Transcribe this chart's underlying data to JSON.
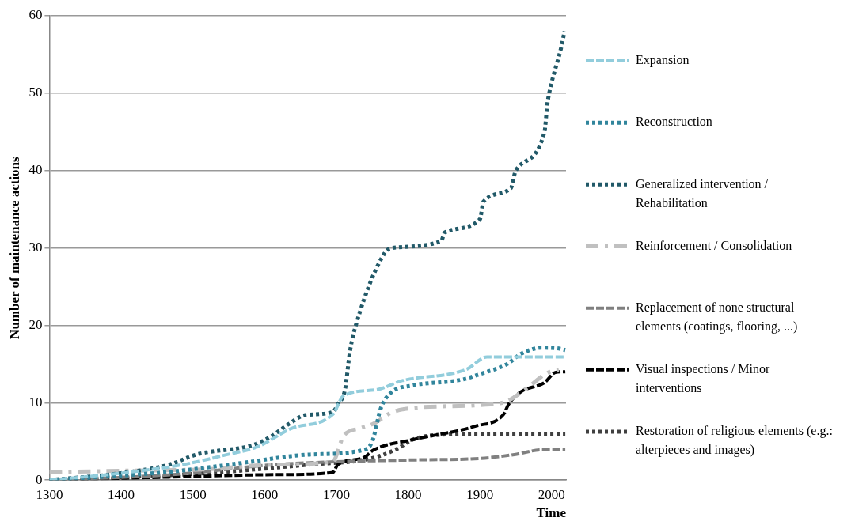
{
  "chart_data": {
    "type": "line",
    "xlabel": "Time",
    "ylabel": "Number of maintenance actions",
    "xlim": [
      1300,
      2020
    ],
    "xticks": [
      1300,
      1400,
      1500,
      1600,
      1700,
      1800,
      1900,
      2000
    ],
    "ylim": [
      0,
      60
    ],
    "yticks": [
      0,
      10,
      20,
      30,
      40,
      50,
      60
    ],
    "grid": "y",
    "legend": "right",
    "marker": "none",
    "series": [
      {
        "name": "Expansion",
        "color": "#92cddc",
        "line_style": "dashed",
        "x": [
          1300,
          1400,
          1486,
          1548,
          1590,
          1638,
          1695,
          1710,
          1757,
          1790,
          1881,
          1910,
          2019
        ],
        "values": [
          0,
          0.9,
          2,
          3.3,
          4.3,
          6.7,
          8.5,
          10.9,
          11.7,
          12.8,
          14.3,
          15.9,
          15.9
        ]
      },
      {
        "name": "Reconstruction",
        "color": "#31859c",
        "line_style": "dotted",
        "x": [
          1300,
          1471,
          1567,
          1662,
          1738,
          1750,
          1762,
          1776,
          1805,
          1876,
          1900,
          1938,
          1957,
          1986,
          2010,
          2019
        ],
        "values": [
          0,
          1.1,
          2.2,
          3.3,
          3.9,
          5,
          9.3,
          11.3,
          12.2,
          13,
          13.7,
          15,
          16.3,
          17.1,
          17,
          16.8
        ]
      },
      {
        "name": "Generalized intervention / Rehabilitation",
        "color": "#215968",
        "line_style": "dotted",
        "x": [
          1300,
          1400,
          1467,
          1505,
          1586,
          1610,
          1633,
          1657,
          1695,
          1702,
          1712,
          1719,
          1729,
          1767,
          1778,
          1846,
          1851,
          1900,
          1905,
          1943,
          1950,
          1990,
          1994,
          1999,
          2013,
          2018
        ],
        "values": [
          0,
          0.9,
          2,
          3.3,
          4.6,
          5.7,
          7.2,
          8.4,
          8.8,
          9.8,
          11.7,
          16.7,
          20.6,
          29.3,
          30,
          30.9,
          32,
          33.7,
          36,
          37.7,
          40,
          45,
          48.6,
          51,
          55.8,
          58
        ]
      },
      {
        "name": "Reinforcement / Consolidation",
        "color": "#c0c0c0",
        "line_style": "dashdot",
        "x": [
          1300,
          1400,
          1519,
          1614,
          1695,
          1710,
          1733,
          1752,
          1776,
          1805,
          1900,
          1938,
          1967,
          1995,
          2010
        ],
        "values": [
          1,
          1.2,
          1.4,
          2,
          2.4,
          5.7,
          6.7,
          7.3,
          8.7,
          9.3,
          9.7,
          10.2,
          12,
          13.9,
          14.2
        ]
      },
      {
        "name": "Replacement of none structural elements (coatings, flooring, ...)",
        "color": "#808080",
        "line_style": "dashed",
        "x": [
          1300,
          1471,
          1614,
          1710,
          1805,
          1900,
          1948,
          1986,
          2019
        ],
        "values": [
          0,
          0.7,
          2,
          2.4,
          2.6,
          2.8,
          3.3,
          3.9,
          3.9
        ]
      },
      {
        "name": "Visual inspections / Minor interventions",
        "color": "#000000",
        "line_style": "dashed",
        "x": [
          1300,
          1471,
          1614,
          1695,
          1702,
          1738,
          1752,
          1805,
          1895,
          1933,
          1940,
          1957,
          1990,
          2005,
          2019
        ],
        "values": [
          0,
          0.4,
          0.7,
          1,
          2,
          2.9,
          3.9,
          5.2,
          7,
          8.5,
          9.8,
          11.4,
          12.6,
          13.9,
          14
        ]
      },
      {
        "name": "Restoration of religious elements (e.g.: alterpieces and images)",
        "color": "#404040",
        "line_style": "dotted",
        "x": [
          1300,
          1519,
          1662,
          1748,
          1786,
          1805,
          1852,
          1900,
          2019
        ],
        "values": [
          0,
          0.9,
          2,
          2.8,
          4.1,
          5.2,
          5.9,
          6,
          6
        ]
      }
    ]
  }
}
